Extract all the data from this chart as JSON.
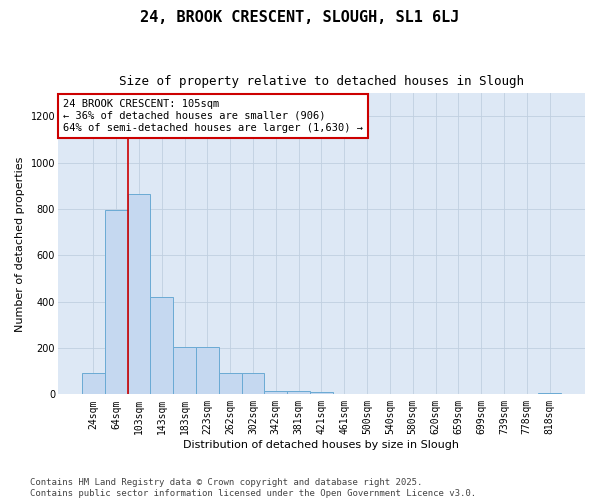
{
  "title1": "24, BROOK CRESCENT, SLOUGH, SL1 6LJ",
  "title2": "Size of property relative to detached houses in Slough",
  "xlabel": "Distribution of detached houses by size in Slough",
  "ylabel": "Number of detached properties",
  "bar_color": "#c5d8f0",
  "bar_edge_color": "#6aaad4",
  "bg_color": "#dde8f5",
  "categories": [
    "24sqm",
    "64sqm",
    "103sqm",
    "143sqm",
    "183sqm",
    "223sqm",
    "262sqm",
    "302sqm",
    "342sqm",
    "381sqm",
    "421sqm",
    "461sqm",
    "500sqm",
    "540sqm",
    "580sqm",
    "620sqm",
    "659sqm",
    "699sqm",
    "739sqm",
    "778sqm",
    "818sqm"
  ],
  "values": [
    90,
    795,
    865,
    420,
    205,
    205,
    90,
    90,
    15,
    15,
    10,
    0,
    0,
    0,
    0,
    0,
    0,
    0,
    0,
    0,
    5
  ],
  "ylim": [
    0,
    1300
  ],
  "yticks": [
    0,
    200,
    400,
    600,
    800,
    1000,
    1200
  ],
  "property_line_bar_index": 2,
  "annotation_text": "24 BROOK CRESCENT: 105sqm\n← 36% of detached houses are smaller (906)\n64% of semi-detached houses are larger (1,630) →",
  "footnote1": "Contains HM Land Registry data © Crown copyright and database right 2025.",
  "footnote2": "Contains public sector information licensed under the Open Government Licence v3.0.",
  "grid_color": "#c0cfe0",
  "red_line_color": "#cc0000",
  "annotation_box_edge_color": "#cc0000",
  "title1_fontsize": 11,
  "title2_fontsize": 9,
  "axis_label_fontsize": 8,
  "tick_fontsize": 7,
  "annotation_fontsize": 7.5,
  "footnote_fontsize": 6.5
}
